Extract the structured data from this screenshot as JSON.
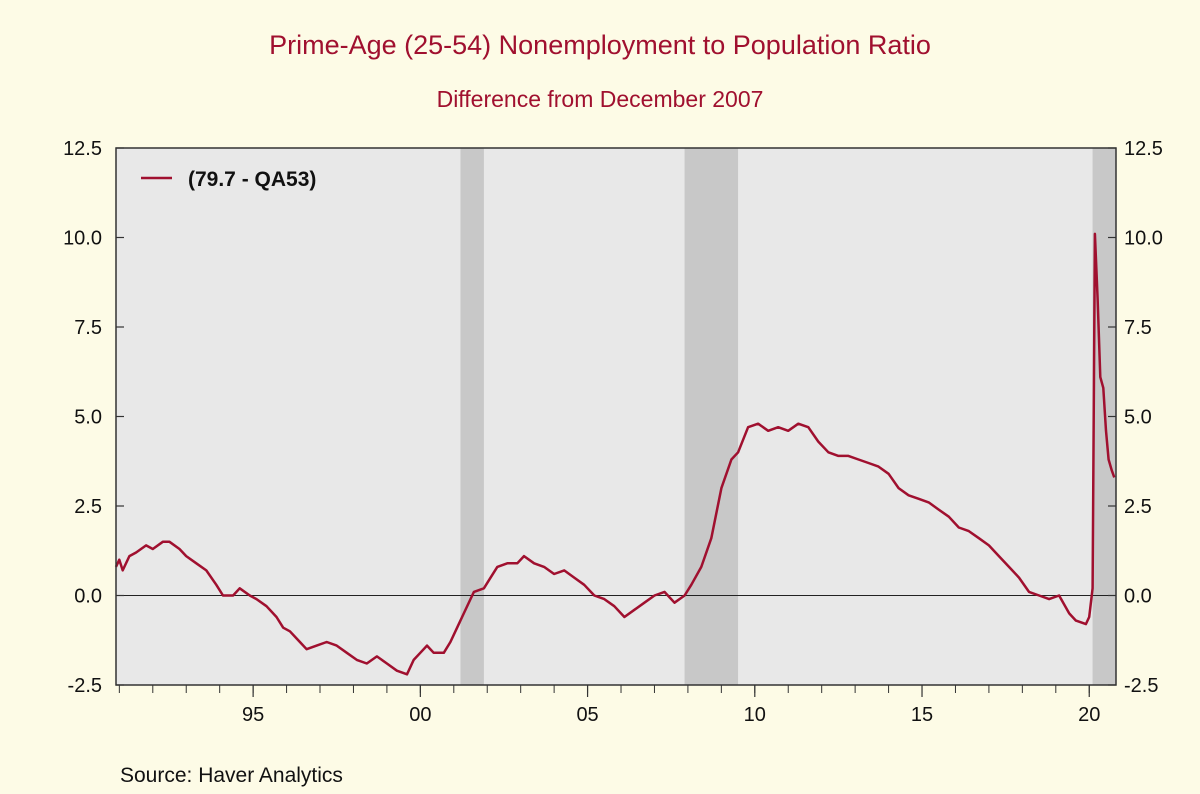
{
  "chart_data": {
    "type": "line",
    "title": "Prime-Age (25-54) Nonemployment to Population Ratio",
    "subtitle": "Difference from December 2007",
    "source": "Source:  Haver Analytics",
    "legend_position": "top-left",
    "grid": false,
    "colors": {
      "line": "#a0102f",
      "plot_bg": "#e8e8e8",
      "recession": "#c8c8c8",
      "page_bg": "#fdfbe6"
    },
    "xlim": [
      1990.9,
      2020.8
    ],
    "ylim": [
      -2.5,
      12.5
    ],
    "y_ticks": [
      -2.5,
      0.0,
      2.5,
      5.0,
      7.5,
      10.0,
      12.5
    ],
    "y_tick_labels": [
      "-2.5",
      "0.0",
      "2.5",
      "5.0",
      "7.5",
      "10.0",
      "12.5"
    ],
    "x_ticks": [
      1995,
      2000,
      2005,
      2010,
      2015,
      2020
    ],
    "x_tick_labels": [
      "95",
      "00",
      "05",
      "10",
      "15",
      "20"
    ],
    "recessions": [
      [
        2001.2,
        2001.9
      ],
      [
        2007.9,
        2009.5
      ],
      [
        2020.1,
        2020.8
      ]
    ],
    "series": [
      {
        "name": "(79.7 - QA53)",
        "x": [
          1990.9,
          1991.0,
          1991.1,
          1991.3,
          1991.5,
          1991.8,
          1992.0,
          1992.3,
          1992.5,
          1992.8,
          1993.0,
          1993.3,
          1993.6,
          1993.9,
          1994.1,
          1994.4,
          1994.6,
          1994.9,
          1995.1,
          1995.4,
          1995.7,
          1995.9,
          1996.1,
          1996.4,
          1996.6,
          1996.9,
          1997.2,
          1997.5,
          1997.8,
          1998.1,
          1998.4,
          1998.7,
          1999.0,
          1999.3,
          1999.6,
          1999.8,
          2000.0,
          2000.2,
          2000.4,
          2000.7,
          2000.9,
          2001.1,
          2001.3,
          2001.6,
          2001.9,
          2002.1,
          2002.3,
          2002.6,
          2002.9,
          2003.1,
          2003.4,
          2003.7,
          2004.0,
          2004.3,
          2004.6,
          2004.9,
          2005.2,
          2005.5,
          2005.8,
          2006.1,
          2006.4,
          2006.7,
          2007.0,
          2007.3,
          2007.6,
          2007.9,
          2008.1,
          2008.4,
          2008.7,
          2009.0,
          2009.3,
          2009.5,
          2009.8,
          2010.1,
          2010.4,
          2010.7,
          2011.0,
          2011.3,
          2011.6,
          2011.9,
          2012.2,
          2012.5,
          2012.8,
          2013.1,
          2013.4,
          2013.7,
          2014.0,
          2014.3,
          2014.6,
          2014.9,
          2015.2,
          2015.5,
          2015.8,
          2016.1,
          2016.4,
          2016.7,
          2017.0,
          2017.3,
          2017.6,
          2017.9,
          2018.2,
          2018.5,
          2018.8,
          2019.1,
          2019.4,
          2019.6,
          2019.9,
          2020.0,
          2020.1,
          2020.17,
          2020.25,
          2020.33,
          2020.42,
          2020.5,
          2020.58,
          2020.67,
          2020.75
        ],
        "values": [
          0.8,
          1.0,
          0.7,
          1.1,
          1.2,
          1.4,
          1.3,
          1.5,
          1.5,
          1.3,
          1.1,
          0.9,
          0.7,
          0.3,
          0.0,
          0.0,
          0.2,
          0.0,
          -0.1,
          -0.3,
          -0.6,
          -0.9,
          -1.0,
          -1.3,
          -1.5,
          -1.4,
          -1.3,
          -1.4,
          -1.6,
          -1.8,
          -1.9,
          -1.7,
          -1.9,
          -2.1,
          -2.2,
          -1.8,
          -1.6,
          -1.4,
          -1.6,
          -1.6,
          -1.3,
          -0.9,
          -0.5,
          0.1,
          0.2,
          0.5,
          0.8,
          0.9,
          0.9,
          1.1,
          0.9,
          0.8,
          0.6,
          0.7,
          0.5,
          0.3,
          0.0,
          -0.1,
          -0.3,
          -0.6,
          -0.4,
          -0.2,
          0.0,
          0.1,
          -0.2,
          0.0,
          0.3,
          0.8,
          1.6,
          3.0,
          3.8,
          4.0,
          4.7,
          4.8,
          4.6,
          4.7,
          4.6,
          4.8,
          4.7,
          4.3,
          4.0,
          3.9,
          3.9,
          3.8,
          3.7,
          3.6,
          3.4,
          3.0,
          2.8,
          2.7,
          2.6,
          2.4,
          2.2,
          1.9,
          1.8,
          1.6,
          1.4,
          1.1,
          0.8,
          0.5,
          0.1,
          0.0,
          -0.1,
          0.0,
          -0.5,
          -0.7,
          -0.8,
          -0.6,
          0.2,
          10.1,
          8.3,
          6.1,
          5.8,
          4.6,
          3.8,
          3.5,
          3.3
        ]
      }
    ]
  }
}
